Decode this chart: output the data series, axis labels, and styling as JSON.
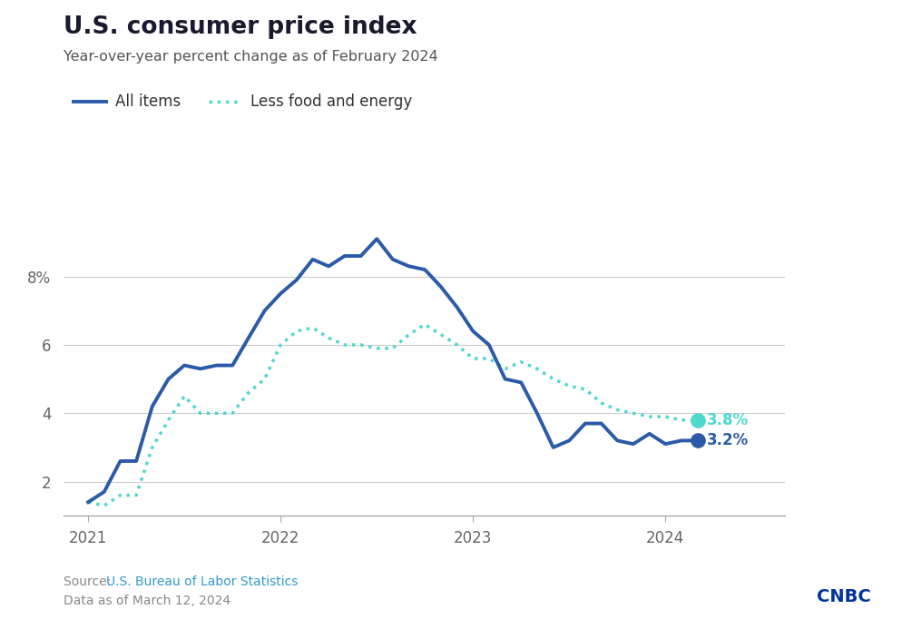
{
  "title": "U.S. consumer price index",
  "subtitle": "Year-over-year percent change as of February 2024",
  "source_prefix": "Source: ",
  "source_link": "U.S. Bureau of Labor Statistics",
  "data_note": "Data as of March 12, 2024",
  "legend_all_items": "All items",
  "legend_less_food": "Less food and energy",
  "all_items_color": "#2B5BA8",
  "less_food_color": "#4FD8CE",
  "end_label_all": "3.2%",
  "end_label_less": "3.8%",
  "yticks": [
    2,
    4,
    6,
    8
  ],
  "ytick_labels": [
    "2",
    "4",
    "6",
    "8%"
  ],
  "ylim": [
    1.0,
    10.2
  ],
  "xlim": [
    2020.87,
    2024.62
  ],
  "xticks": [
    2021,
    2022,
    2023,
    2024
  ],
  "xtick_labels": [
    "2021",
    "2022",
    "2023",
    "2024"
  ],
  "background_color": "#ffffff",
  "title_color": "#1a1a2e",
  "subtitle_color": "#555555",
  "tick_color": "#666666",
  "grid_color": "#cccccc",
  "source_color": "#888888",
  "link_color": "#3399cc",
  "cnbc_color": "#003399",
  "all_items_x": [
    2021.0,
    2021.083,
    2021.167,
    2021.25,
    2021.333,
    2021.417,
    2021.5,
    2021.583,
    2021.667,
    2021.75,
    2021.833,
    2021.917,
    2022.0,
    2022.083,
    2022.167,
    2022.25,
    2022.333,
    2022.417,
    2022.5,
    2022.583,
    2022.667,
    2022.75,
    2022.833,
    2022.917,
    2023.0,
    2023.083,
    2023.167,
    2023.25,
    2023.333,
    2023.417,
    2023.5,
    2023.583,
    2023.667,
    2023.75,
    2023.833,
    2023.917,
    2024.0,
    2024.083,
    2024.167
  ],
  "all_items_y": [
    1.4,
    1.7,
    2.6,
    2.6,
    4.2,
    5.0,
    5.4,
    5.3,
    5.4,
    5.4,
    6.2,
    7.0,
    7.5,
    7.9,
    8.5,
    8.3,
    8.6,
    8.6,
    9.1,
    8.5,
    8.3,
    8.2,
    7.7,
    7.1,
    6.4,
    6.0,
    5.0,
    4.9,
    4.0,
    3.0,
    3.2,
    3.7,
    3.7,
    3.2,
    3.1,
    3.4,
    3.1,
    3.2,
    3.2
  ],
  "less_food_x": [
    2021.0,
    2021.083,
    2021.167,
    2021.25,
    2021.333,
    2021.417,
    2021.5,
    2021.583,
    2021.667,
    2021.75,
    2021.833,
    2021.917,
    2022.0,
    2022.083,
    2022.167,
    2022.25,
    2022.333,
    2022.417,
    2022.5,
    2022.583,
    2022.667,
    2022.75,
    2022.833,
    2022.917,
    2023.0,
    2023.083,
    2023.167,
    2023.25,
    2023.333,
    2023.417,
    2023.5,
    2023.583,
    2023.667,
    2023.75,
    2023.833,
    2023.917,
    2024.0,
    2024.083,
    2024.167
  ],
  "less_food_y": [
    1.4,
    1.3,
    1.6,
    1.6,
    3.0,
    3.8,
    4.5,
    4.0,
    4.0,
    4.0,
    4.6,
    5.0,
    6.0,
    6.4,
    6.5,
    6.2,
    6.0,
    6.0,
    5.9,
    5.9,
    6.3,
    6.6,
    6.3,
    6.0,
    5.6,
    5.6,
    5.3,
    5.5,
    5.3,
    5.0,
    4.8,
    4.7,
    4.3,
    4.1,
    4.0,
    3.9,
    3.9,
    3.8,
    3.8
  ]
}
